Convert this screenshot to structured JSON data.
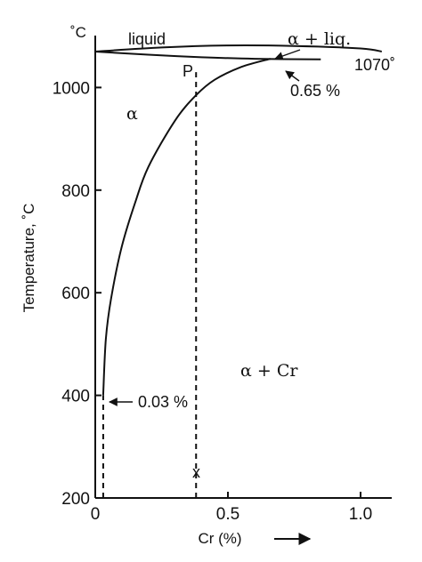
{
  "chart_data": {
    "type": "line",
    "title": "",
    "ylabel": "Temperature, ˚C",
    "yunit": "˚C",
    "xlabel": "Cr (%)",
    "xlabel_arrow": "→",
    "xlim": [
      0,
      1.15
    ],
    "ylim": [
      200,
      1125
    ],
    "xticks": [
      {
        "value": 0,
        "label": "0"
      },
      {
        "value": 0.5,
        "label": "0.5"
      },
      {
        "value": 1.0,
        "label": "1.0"
      }
    ],
    "yticks": [
      {
        "value": 200,
        "label": "200"
      },
      {
        "value": 400,
        "label": "400"
      },
      {
        "value": 600,
        "label": "600"
      },
      {
        "value": 800,
        "label": "800"
      },
      {
        "value": 1000,
        "label": "1000"
      }
    ],
    "grid": false,
    "series": [
      {
        "role": "liquidus",
        "points": [
          [
            0,
            1070
          ],
          [
            0.25,
            1078
          ],
          [
            0.5,
            1082
          ],
          [
            0.75,
            1081
          ],
          [
            1.0,
            1076
          ],
          [
            1.08,
            1070
          ]
        ]
      },
      {
        "role": "solidus",
        "points": [
          [
            0,
            1070
          ],
          [
            0.2,
            1064
          ],
          [
            0.4,
            1059
          ],
          [
            0.6,
            1056
          ],
          [
            0.85,
            1055
          ]
        ]
      },
      {
        "role": "solvus",
        "points": [
          [
            0.66,
            1056
          ],
          [
            0.55,
            1040
          ],
          [
            0.45,
            1015
          ],
          [
            0.38,
            985
          ],
          [
            0.3,
            935
          ],
          [
            0.2,
            845
          ],
          [
            0.15,
            775
          ],
          [
            0.1,
            690
          ],
          [
            0.06,
            590
          ],
          [
            0.04,
            510
          ],
          [
            0.03,
            400
          ]
        ]
      }
    ],
    "vertical_lines": [
      {
        "role": "alloy-composition",
        "x": 0.38,
        "y_from": 200,
        "y_to": 1030,
        "style": "dashed"
      },
      {
        "role": "solubility-at-400",
        "x": 0.03,
        "y_from": 200,
        "y_to": 400,
        "style": "dashed"
      }
    ],
    "annotations": [
      {
        "role": "liquid-region",
        "text": "liquid"
      },
      {
        "role": "two-phase-liquid",
        "text": "α + liq."
      },
      {
        "role": "eutectic-temp",
        "text": "1070˚"
      },
      {
        "role": "max-solubility",
        "text": "0.65 %"
      },
      {
        "role": "point-P",
        "text": "P"
      },
      {
        "role": "alpha-region",
        "text": "α"
      },
      {
        "role": "alpha-cr-region",
        "text": "α + Cr"
      },
      {
        "role": "solubility-400",
        "text": "0.03 %"
      },
      {
        "role": "point-x",
        "text": "x"
      }
    ]
  }
}
